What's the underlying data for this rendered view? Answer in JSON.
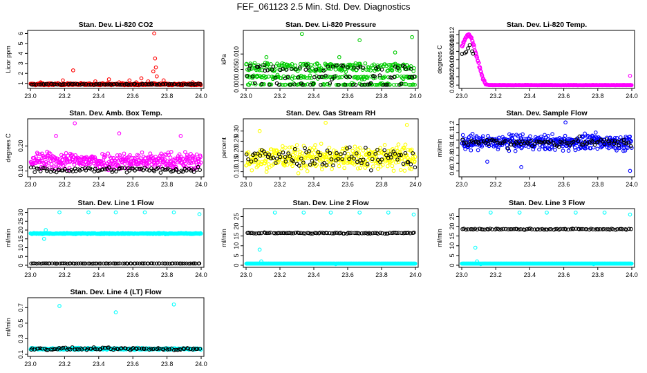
{
  "figure": {
    "title": "FEF_061123  2.5 Min. Std. Dev. Diagnostics"
  },
  "chart_data": [
    {
      "type": "scatter",
      "title": "Stan. Dev. Li-820 CO2",
      "xlabel": "",
      "ylabel": "Licor ppm",
      "xlim": [
        23.0,
        24.0
      ],
      "ylim": [
        0.7,
        6.1
      ],
      "xticks": [
        "23.0",
        "23.2",
        "23.4",
        "23.6",
        "23.8",
        "24.0"
      ],
      "yticks": [
        "1",
        "2",
        "3",
        "4",
        "5",
        "6"
      ],
      "series": [
        {
          "color": "#ff0000",
          "base": 0.9,
          "noise": 0.12,
          "spikes": [
            [
              23.06,
              1.1
            ],
            [
              23.19,
              1.3
            ],
            [
              23.25,
              2.3
            ],
            [
              23.38,
              1.2
            ],
            [
              23.46,
              1.4
            ],
            [
              23.52,
              1.1
            ],
            [
              23.58,
              1.3
            ],
            [
              23.62,
              1.1
            ],
            [
              23.65,
              1.5
            ],
            [
              23.69,
              1.2
            ],
            [
              23.72,
              2.2
            ],
            [
              23.725,
              6.0
            ],
            [
              23.73,
              3.5
            ],
            [
              23.735,
              2.6
            ],
            [
              23.74,
              1.7
            ],
            [
              23.78,
              1.3
            ],
            [
              23.95,
              1.1
            ]
          ]
        },
        {
          "color": "#000000",
          "base": 0.9,
          "noise": 0.05,
          "spikes": [
            [
              23.71,
              1.0
            ]
          ]
        }
      ]
    },
    {
      "type": "scatter",
      "title": "Stan. Dev. Li-820 Pressure",
      "xlabel": "",
      "ylabel": "kPa",
      "xlim": [
        23.0,
        24.0
      ],
      "ylim": [
        -0.0005,
        0.017
      ],
      "xticks": [
        "23.0",
        "23.2",
        "23.4",
        "23.6",
        "23.8",
        "24.0"
      ],
      "yticks": [
        "0.000",
        "0.005",
        "0.010"
      ],
      "series": [
        {
          "color": "#00cc00",
          "levels": [
            0.0,
            0.0025,
            0.005,
            0.0065
          ],
          "spikes": [
            [
              23.33,
              0.0165
            ],
            [
              23.67,
              0.0145
            ],
            [
              23.98,
              0.0155
            ],
            [
              23.88,
              0.0105
            ],
            [
              23.12,
              0.009
            ],
            [
              23.55,
              0.009
            ]
          ]
        },
        {
          "color": "#000000",
          "levels": [
            0.0,
            0.0025,
            0.005,
            0.006
          ],
          "spikes": []
        }
      ]
    },
    {
      "type": "scatter",
      "title": "Stan. Dev. Li-820 Temp.",
      "xlabel": "",
      "ylabel": "degrees C",
      "xlim": [
        23.0,
        24.0
      ],
      "ylim": [
        -0.0003,
        0.0125
      ],
      "xticks": [
        "23.0",
        "23.2",
        "23.4",
        "23.6",
        "23.8",
        "24.0"
      ],
      "yticks": [
        "0.000",
        "0.002",
        "0.004",
        "0.006",
        "0.008",
        "0.010",
        "0.012"
      ],
      "series": [
        {
          "color": "#ff00ff",
          "decay": [
            [
              23.0,
              0.009
            ],
            [
              23.02,
              0.011
            ],
            [
              23.04,
              0.0122
            ],
            [
              23.06,
              0.011
            ],
            [
              23.08,
              0.008
            ],
            [
              23.1,
              0.005
            ],
            [
              23.12,
              0.002
            ],
            [
              23.14,
              0.0002
            ],
            [
              23.16,
              0.0
            ]
          ],
          "spikes": [
            [
              23.99,
              0.0022
            ]
          ]
        },
        {
          "color": "#000000",
          "decay": [
            [
              23.02,
              0.0075
            ],
            [
              23.05,
              0.0095
            ],
            [
              23.08,
              0.0055
            ]
          ],
          "spikes": []
        }
      ]
    },
    {
      "type": "scatter",
      "title": "Stan. Dev. Amb. Box Temp.",
      "xlabel": "",
      "ylabel": "degrees C",
      "xlim": [
        23.0,
        24.0
      ],
      "ylim": [
        0.085,
        0.3
      ],
      "xticks": [
        "23.0",
        "23.2",
        "23.4",
        "23.6",
        "23.8",
        "24.0"
      ],
      "yticks": [
        "0.10",
        "0.20"
      ],
      "series": [
        {
          "color": "#ff00ff",
          "base": 0.14,
          "noise": 0.035,
          "spikes": [
            [
              23.26,
              0.29
            ],
            [
              23.52,
              0.25
            ],
            [
              23.15,
              0.24
            ],
            [
              23.88,
              0.24
            ]
          ]
        },
        {
          "color": "#000000",
          "base": 0.105,
          "noise": 0.012,
          "spikes": []
        }
      ]
    },
    {
      "type": "scatter",
      "title": "Stan. Dev. Gas Stream RH",
      "xlabel": "",
      "ylabel": "percent",
      "xlim": [
        23.0,
        24.0
      ],
      "ylim": [
        0.085,
        0.35
      ],
      "xticks": [
        "23.0",
        "23.2",
        "23.4",
        "23.6",
        "23.8",
        "24.0"
      ],
      "yticks": [
        "0.10",
        "0.15",
        "0.20",
        "0.25",
        "0.30"
      ],
      "series": [
        {
          "color": "#ffff00",
          "base": 0.17,
          "noise": 0.06,
          "spikes": [
            [
              23.47,
              0.34
            ],
            [
              23.95,
              0.33
            ],
            [
              23.08,
              0.3
            ]
          ]
        },
        {
          "color": "#000000",
          "base": 0.17,
          "noise": 0.05,
          "spikes": []
        }
      ]
    },
    {
      "type": "scatter",
      "title": "Stan. Dev. Sample Flow",
      "xlabel": "",
      "ylabel": "ml/min",
      "xlim": [
        23.0,
        24.0
      ],
      "ylim": [
        0.55,
        1.25
      ],
      "xticks": [
        "23.0",
        "23.2",
        "23.4",
        "23.6",
        "23.8",
        "24.0"
      ],
      "yticks": [
        "0.6",
        "0.7",
        "0.8",
        "0.9",
        "1.0",
        "1.1",
        "1.2"
      ],
      "series": [
        {
          "color": "#0000ff",
          "base": 0.97,
          "noise": 0.1,
          "spikes": [
            [
              23.99,
              0.6
            ],
            [
              23.35,
              0.65
            ],
            [
              23.61,
              1.23
            ],
            [
              23.15,
              0.72
            ]
          ]
        },
        {
          "color": "#000000",
          "base": 0.97,
          "noise": 0.06,
          "spikes": []
        }
      ]
    },
    {
      "type": "scatter",
      "title": "Stan. Dev. Line 1 Flow",
      "xlabel": "",
      "ylabel": "ml/min",
      "xlim": [
        23.0,
        24.0
      ],
      "ylim": [
        0.0,
        31.0
      ],
      "xticks": [
        "23.0",
        "23.2",
        "23.4",
        "23.6",
        "23.8",
        "24.0"
      ],
      "yticks": [
        "0",
        "5",
        "10",
        "15",
        "20",
        "25",
        "30"
      ],
      "series": [
        {
          "color": "#00ffff",
          "base": 18.0,
          "noise": 0.3,
          "spikes": [
            [
              23.17,
              30.0
            ],
            [
              23.34,
              30.0
            ],
            [
              23.5,
              30.0
            ],
            [
              23.67,
              30.0
            ],
            [
              23.84,
              30.0
            ],
            [
              23.99,
              29.0
            ],
            [
              23.08,
              15.0
            ],
            [
              23.09,
              20.0
            ]
          ]
        },
        {
          "color": "#000000",
          "base": 1.0,
          "noise": 0.05,
          "spikes": []
        }
      ]
    },
    {
      "type": "scatter",
      "title": "Stan. Dev. Line 2 Flow",
      "xlabel": "",
      "ylabel": "ml/min",
      "xlim": [
        23.0,
        24.0
      ],
      "ylim": [
        0.0,
        28.0
      ],
      "xticks": [
        "23.0",
        "23.2",
        "23.4",
        "23.6",
        "23.8",
        "24.0"
      ],
      "yticks": [
        "0",
        "5",
        "10",
        "15",
        "20",
        "25"
      ],
      "series": [
        {
          "color": "#00ffff",
          "base": 0.5,
          "noise": 0.05,
          "spikes": [
            [
              23.17,
              27.0
            ],
            [
              23.34,
              27.0
            ],
            [
              23.5,
              27.0
            ],
            [
              23.67,
              27.0
            ],
            [
              23.84,
              27.0
            ],
            [
              23.99,
              26.0
            ],
            [
              23.08,
              8.0
            ],
            [
              23.09,
              2.0
            ]
          ]
        },
        {
          "color": "#000000",
          "base": 16.5,
          "noise": 0.3,
          "spikes": []
        }
      ]
    },
    {
      "type": "scatter",
      "title": "Stan. Dev. Line 3 Flow",
      "xlabel": "",
      "ylabel": "ml/min",
      "xlim": [
        23.0,
        24.0
      ],
      "ylim": [
        0.0,
        28.0
      ],
      "xticks": [
        "23.0",
        "23.2",
        "23.4",
        "23.6",
        "23.8",
        "24.0"
      ],
      "yticks": [
        "0",
        "5",
        "10",
        "15",
        "20",
        "25"
      ],
      "series": [
        {
          "color": "#00ffff",
          "base": 0.5,
          "noise": 0.05,
          "spikes": [
            [
              23.17,
              27.0
            ],
            [
              23.34,
              27.0
            ],
            [
              23.5,
              27.0
            ],
            [
              23.67,
              27.0
            ],
            [
              23.84,
              27.0
            ],
            [
              23.99,
              26.0
            ],
            [
              23.08,
              9.0
            ],
            [
              23.09,
              2.0
            ]
          ]
        },
        {
          "color": "#000000",
          "base": 18.5,
          "noise": 0.3,
          "spikes": []
        }
      ]
    },
    {
      "type": "scatter",
      "title": "Stan. Dev. Line 4 (LT) Flow",
      "xlabel": "",
      "ylabel": "ml/min",
      "xlim": [
        23.0,
        24.0
      ],
      "ylim": [
        0.1,
        0.8
      ],
      "xticks": [
        "23.0",
        "23.2",
        "23.4",
        "23.6",
        "23.8",
        "24.0"
      ],
      "yticks": [
        "0.1",
        "0.3",
        "0.5",
        "0.7"
      ],
      "series": [
        {
          "color": "#00ffff",
          "base": 0.17,
          "noise": 0.01,
          "spikes": [
            [
              23.17,
              0.72
            ],
            [
              23.5,
              0.64
            ],
            [
              23.84,
              0.74
            ]
          ]
        },
        {
          "color": "#000000",
          "base": 0.17,
          "noise": 0.015,
          "spikes": []
        }
      ]
    }
  ]
}
